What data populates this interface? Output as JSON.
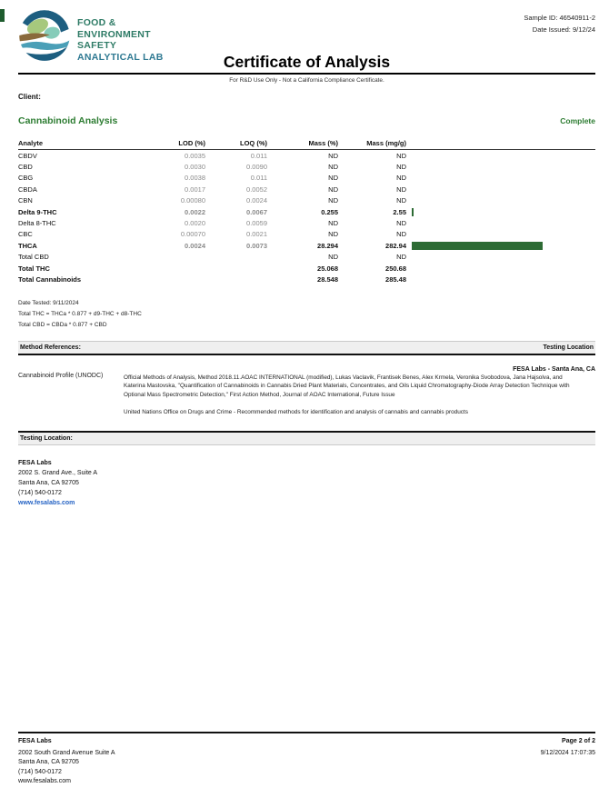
{
  "header": {
    "logo_lines": [
      "FOOD &",
      "ENVIRONMENT",
      "SAFETY",
      "ANALYTICAL LAB"
    ],
    "sample_id": "Sample ID: 46540911-2",
    "date_issued": "Date Issued: 9/12/24",
    "title": "Certificate of Analysis",
    "subtitle": "For R&D Use Only - Not a California Compliance Certificate."
  },
  "client_label": "Client:",
  "section": {
    "title": "Cannabinoid Analysis",
    "status": "Complete"
  },
  "table": {
    "headers": [
      "Analyte",
      "LOD (%)",
      "LOQ (%)",
      "Mass (%)",
      "Mass (mg/g)"
    ],
    "rows": [
      {
        "analyte": "CBDV",
        "lod": "0.0035",
        "loq": "0.011",
        "mass_pct": "ND",
        "mass_mgg": "ND",
        "bold": false,
        "bar": 0
      },
      {
        "analyte": "CBD",
        "lod": "0.0030",
        "loq": "0.0090",
        "mass_pct": "ND",
        "mass_mgg": "ND",
        "bold": false,
        "bar": 0
      },
      {
        "analyte": "CBG",
        "lod": "0.0038",
        "loq": "0.011",
        "mass_pct": "ND",
        "mass_mgg": "ND",
        "bold": false,
        "bar": 0
      },
      {
        "analyte": "CBDA",
        "lod": "0.0017",
        "loq": "0.0052",
        "mass_pct": "ND",
        "mass_mgg": "ND",
        "bold": false,
        "bar": 0
      },
      {
        "analyte": "CBN",
        "lod": "0.00080",
        "loq": "0.0024",
        "mass_pct": "ND",
        "mass_mgg": "ND",
        "bold": false,
        "bar": 0
      },
      {
        "analyte": "Delta 9-THC",
        "lod": "0.0022",
        "loq": "0.0067",
        "mass_pct": "0.255",
        "mass_mgg": "2.55",
        "bold": true,
        "bar": 2.55
      },
      {
        "analyte": "Delta 8-THC",
        "lod": "0.0020",
        "loq": "0.0059",
        "mass_pct": "ND",
        "mass_mgg": "ND",
        "bold": false,
        "bar": 0
      },
      {
        "analyte": "CBC",
        "lod": "0.00070",
        "loq": "0.0021",
        "mass_pct": "ND",
        "mass_mgg": "ND",
        "bold": false,
        "bar": 0
      },
      {
        "analyte": "THCA",
        "lod": "0.0024",
        "loq": "0.0073",
        "mass_pct": "28.294",
        "mass_mgg": "282.94",
        "bold": true,
        "bar": 282.94
      },
      {
        "analyte": "Total CBD",
        "lod": "",
        "loq": "",
        "mass_pct": "ND",
        "mass_mgg": "ND",
        "bold": false,
        "bar": 0
      },
      {
        "analyte": "Total THC",
        "lod": "",
        "loq": "",
        "mass_pct": "25.068",
        "mass_mgg": "250.68",
        "bold": true,
        "bar": 0
      },
      {
        "analyte": "Total Cannabinoids",
        "lod": "",
        "loq": "",
        "mass_pct": "28.548",
        "mass_mgg": "285.48",
        "bold": true,
        "bar": 0
      }
    ]
  },
  "chart_data": {
    "type": "bar",
    "title": "Mass (mg/g) inline bars",
    "categories": [
      "Delta 9-THC",
      "THCA"
    ],
    "values": [
      2.55,
      282.94
    ],
    "xlabel": "",
    "ylabel": "Mass (mg/g)",
    "xlim": [
      0,
      285.48
    ],
    "bar_color": "#2d6b34"
  },
  "footnotes": [
    "Date Tested: 9/11/2024",
    "Total THC = THCa * 0.877 + d9-THC + d8-THC",
    "Total CBD = CBDa * 0.877 + CBD"
  ],
  "method_references": {
    "bar_left": "Method References:",
    "bar_right": "Testing Location",
    "method_name": "Cannabinoid Profile (UNODC)",
    "location": "FESA Labs - Santa Ana, CA",
    "reference_1": "Official Methods of Analysis, Method 2018.11.AOAC INTERNATIONAL (modified), Lukas Vaclavik, Frantisek Benes, Alex Krmela, Veronika Svobodova, Jana Hajsolva, and Katerina Mastovska, \"Quantification of Cannabinoids in Cannabis Dried Plant Materials, Concentrates, and Oils Liquid Chromatography-Diode Array Detection Technique with Optional Mass Spectrometric Detection,\" First Action Method, Journal of AOAC International, Future Issue",
    "reference_2": "United Nations Office on Drugs and Crime - Recommended methods for identification and analysis of cannabis and cannabis products"
  },
  "testing_location": {
    "bar_label": "Testing Location:",
    "name": "FESA Labs",
    "address_1": "2002 S. Grand Ave., Suite A",
    "address_2": "Santa Ana, CA 92705",
    "phone": "(714) 540-0172",
    "website": "www.fesalabs.com"
  },
  "footer": {
    "name": "FESA Labs",
    "address_1": "2002 South Grand Avenue Suite A",
    "address_2": "Santa Ana, CA 92705",
    "phone": "(714) 540-0172",
    "website": "www.fesalabs.com",
    "page": "Page 2 of 2",
    "timestamp": "9/12/2024 17:07:35"
  },
  "colors": {
    "accent_green": "#2e7d33",
    "bar_green": "#2d6b34",
    "link_blue": "#2563c4"
  }
}
